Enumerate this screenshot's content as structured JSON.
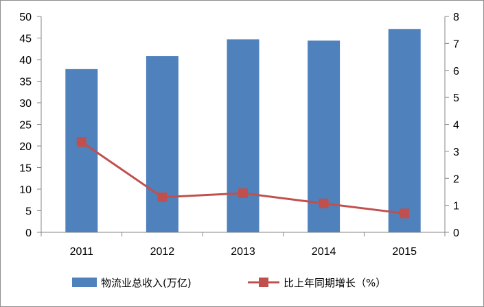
{
  "chart_data": {
    "type": "bar",
    "categories": [
      "2011",
      "2012",
      "2013",
      "2014",
      "2015"
    ],
    "series": [
      {
        "name": "物流业总收入(万亿)",
        "type": "bar",
        "axis": "left",
        "color": "#4f81bd",
        "values": [
          37.8,
          40.8,
          44.7,
          44.4,
          47.1
        ]
      },
      {
        "name": "比上年同期增长（%）",
        "type": "line",
        "axis": "right",
        "color": "#c0504d",
        "values": [
          3.35,
          1.3,
          1.45,
          1.07,
          0.7
        ]
      }
    ],
    "ylim": [
      0,
      50
    ],
    "y_ticks": [
      "0",
      "5",
      "10",
      "15",
      "20",
      "25",
      "30",
      "35",
      "40",
      "45",
      "50"
    ],
    "y2lim": [
      0,
      8
    ],
    "y2_ticks": [
      "0",
      "1",
      "2",
      "3",
      "4",
      "5",
      "6",
      "7",
      "8"
    ],
    "title": "",
    "xlabel": "",
    "ylabel": "",
    "y2label": "",
    "grid": false,
    "legend_position": "bottom"
  }
}
